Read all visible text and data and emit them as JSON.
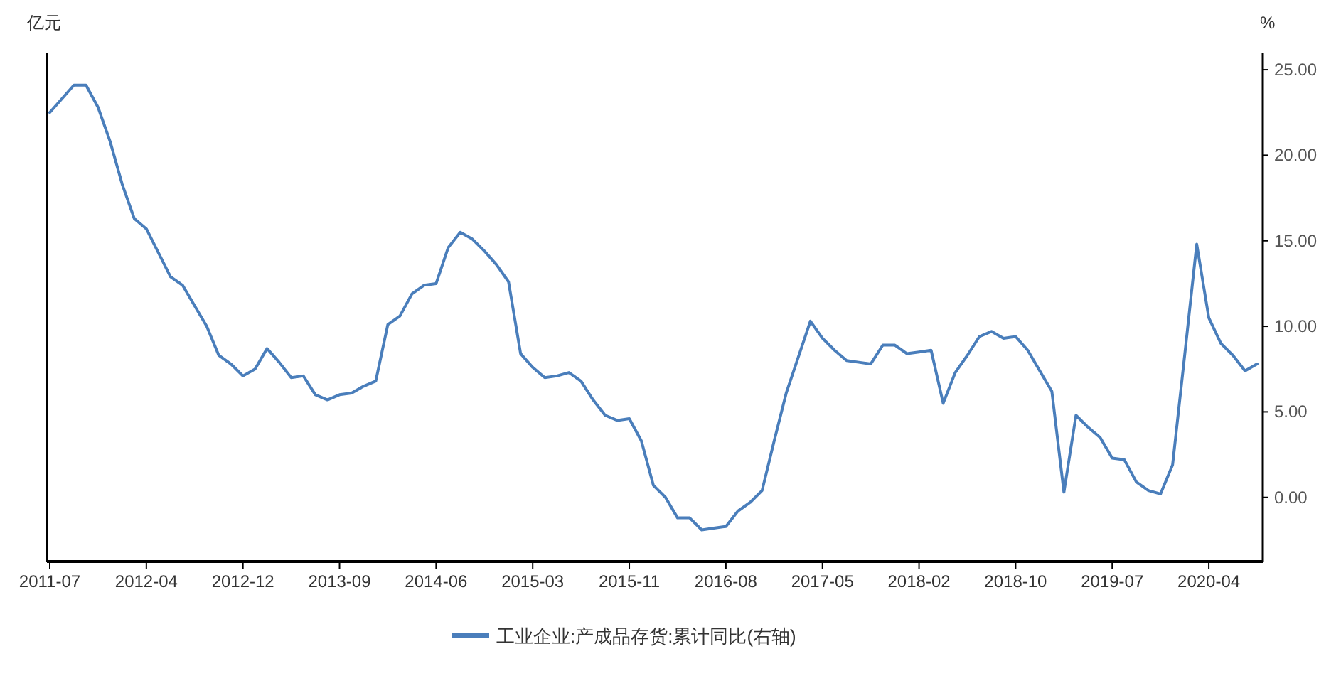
{
  "chart_data": {
    "type": "line",
    "ylabel": "亿元",
    "y2label": "%",
    "categories": [
      "2011-07",
      null,
      null,
      null,
      null,
      null,
      null,
      null,
      "2012-04",
      null,
      null,
      null,
      null,
      null,
      null,
      null,
      "2012-12",
      null,
      null,
      null,
      null,
      null,
      null,
      null,
      "2013-09",
      null,
      null,
      null,
      null,
      null,
      null,
      null,
      "2014-06",
      null,
      null,
      null,
      null,
      null,
      null,
      null,
      "2015-03",
      null,
      null,
      null,
      null,
      null,
      null,
      null,
      "2015-11",
      null,
      null,
      null,
      null,
      null,
      null,
      null,
      "2016-08",
      null,
      null,
      null,
      null,
      null,
      null,
      null,
      "2017-05",
      null,
      null,
      null,
      null,
      null,
      null,
      null,
      "2018-02",
      null,
      null,
      null,
      null,
      null,
      null,
      null,
      "2018-10",
      null,
      null,
      null,
      null,
      null,
      null,
      null,
      "2019-07",
      null,
      null,
      null,
      null,
      null,
      null,
      null,
      "2020-04",
      null,
      null,
      null,
      null
    ],
    "series": [
      {
        "name": "工业企业:产成品存货:累计同比(右轴)",
        "color": "#4a7ebb",
        "axis": "y2",
        "values": [
          22.5,
          23.3,
          24.1,
          24.1,
          22.8,
          20.8,
          18.3,
          16.3,
          15.7,
          14.3,
          12.9,
          12.4,
          11.2,
          10.0,
          8.3,
          7.8,
          7.1,
          7.5,
          8.7,
          7.9,
          7.0,
          7.1,
          6.0,
          5.7,
          6.0,
          6.1,
          6.5,
          6.8,
          10.1,
          10.6,
          11.9,
          12.4,
          12.5,
          14.6,
          15.5,
          15.1,
          14.4,
          13.6,
          12.6,
          8.4,
          7.6,
          7.0,
          7.1,
          7.3,
          6.8,
          5.7,
          4.8,
          4.5,
          4.6,
          3.3,
          0.7,
          0.0,
          -1.2,
          -1.2,
          -1.9,
          -1.8,
          -1.7,
          -0.8,
          -0.3,
          0.4,
          3.3,
          6.1,
          8.2,
          10.3,
          9.3,
          8.6,
          8.0,
          7.9,
          7.8,
          8.9,
          8.9,
          8.4,
          8.5,
          8.6,
          5.5,
          7.3,
          8.3,
          9.4,
          9.7,
          9.3,
          9.4,
          8.6,
          7.4,
          6.2,
          0.3,
          4.8,
          4.1,
          3.5,
          2.3,
          2.2,
          0.9,
          0.4,
          0.2,
          1.9,
          8.3,
          14.8,
          10.5,
          9.0,
          8.3,
          7.4,
          7.8
        ]
      }
    ],
    "y2lim": [
      -3.75,
      26
    ],
    "y2ticks": [
      {
        "value": 0,
        "label": "0.00"
      },
      {
        "value": 5,
        "label": "5.00"
      },
      {
        "value": 10,
        "label": "10.00"
      },
      {
        "value": 15,
        "label": "15.00"
      },
      {
        "value": 20,
        "label": "20.00"
      },
      {
        "value": 25,
        "label": "25.00"
      }
    ],
    "legend": "bottom"
  }
}
